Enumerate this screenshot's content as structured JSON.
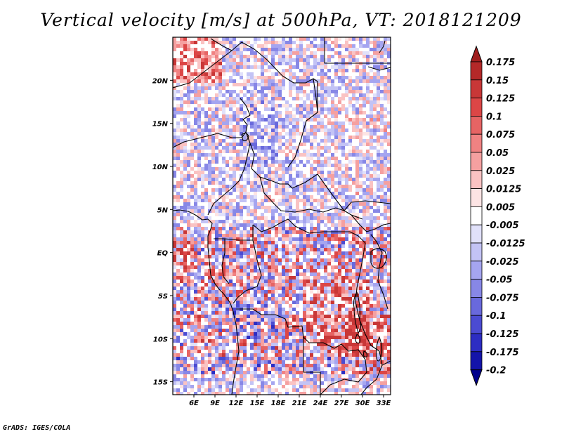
{
  "title": "Vertical velocity [m/s] at 500hPa, VT: 2018121209",
  "credit": "GrADS: IGES/COLA",
  "map": {
    "lon_range": [
      3,
      34
    ],
    "lat_range": [
      -16.5,
      25
    ],
    "lon_ticks": [
      {
        "value": 6,
        "label": "6E"
      },
      {
        "value": 9,
        "label": "9E"
      },
      {
        "value": 12,
        "label": "12E"
      },
      {
        "value": 15,
        "label": "15E"
      },
      {
        "value": 18,
        "label": "18E"
      },
      {
        "value": 21,
        "label": "21E"
      },
      {
        "value": 24,
        "label": "24E"
      },
      {
        "value": 27,
        "label": "27E"
      },
      {
        "value": 30,
        "label": "30E"
      },
      {
        "value": 33,
        "label": "33E"
      }
    ],
    "lat_ticks": [
      {
        "value": 20,
        "label": "20N"
      },
      {
        "value": 15,
        "label": "15N"
      },
      {
        "value": 10,
        "label": "10N"
      },
      {
        "value": 5,
        "label": "5N"
      },
      {
        "value": 0,
        "label": "EQ"
      },
      {
        "value": -5,
        "label": "5S"
      },
      {
        "value": -10,
        "label": "10S"
      },
      {
        "value": -15,
        "label": "15S"
      }
    ]
  },
  "colorbar": {
    "levels": [
      "0.175",
      "0.15",
      "0.125",
      "0.1",
      "0.075",
      "0.05",
      "0.025",
      "0.0125",
      "0.005",
      "-0.005",
      "-0.0125",
      "-0.025",
      "-0.05",
      "-0.075",
      "-0.1",
      "-0.125",
      "-0.175",
      "-0.2"
    ],
    "colors": [
      "#a01e1e",
      "#b42828",
      "#c83737",
      "#dc4646",
      "#e66464",
      "#f08282",
      "#f5a0a0",
      "#fac3c3",
      "#fde4e4",
      "#ffffff",
      "#e1e1fa",
      "#c3c3f5",
      "#a5a5f0",
      "#8787e6",
      "#6969dc",
      "#4b4bd2",
      "#2d2dc3",
      "#1414aa",
      "#00008c"
    ]
  }
}
